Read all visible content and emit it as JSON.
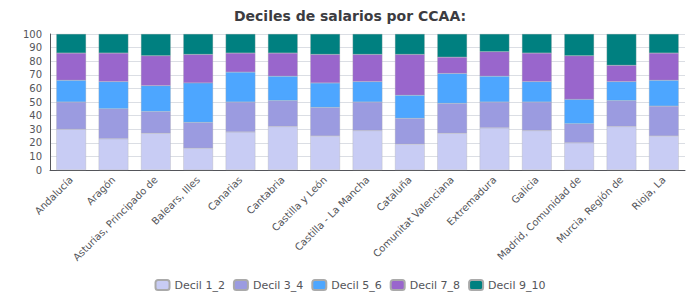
{
  "chart_data": {
    "type": "bar",
    "title": "Deciles de salarios por CCAA:",
    "categories": [
      "Andalucía",
      "Aragón",
      "Asturias, Principado de",
      "Balears, Illes",
      "Canarias",
      "Cantabria",
      "Castilla y León",
      "Castilla - La Mancha",
      "Cataluña",
      "Comunitat Valenciana",
      "Extremadura",
      "Galicia",
      "Madrid, Comunidad de",
      "Murcia, Región de",
      "Rioja, La"
    ],
    "series": [
      {
        "name": "Decil 1_2",
        "color": "#c8ccf4",
        "values": [
          30,
          23,
          27,
          16,
          28,
          32,
          25,
          29,
          19,
          27,
          31,
          29,
          20,
          32,
          25
        ]
      },
      {
        "name": "Decil 3_4",
        "color": "#9b9be0",
        "values": [
          20,
          22,
          16,
          19,
          22,
          19,
          21,
          21,
          19,
          22,
          19,
          21,
          14,
          19,
          22
        ]
      },
      {
        "name": "Decil 5_6",
        "color": "#4da6ff",
        "values": [
          16,
          20,
          19,
          29,
          22,
          18,
          18,
          15,
          17,
          22,
          19,
          15,
          18,
          14,
          19
        ]
      },
      {
        "name": "Decil 7_8",
        "color": "#9966cc",
        "values": [
          20,
          21,
          22,
          21,
          14,
          17,
          21,
          20,
          30,
          12,
          18,
          21,
          32,
          12,
          20
        ]
      },
      {
        "name": "Decil 9_10",
        "color": "#008080",
        "values": [
          14,
          14,
          16,
          15,
          14,
          14,
          15,
          15,
          15,
          17,
          13,
          14,
          16,
          23,
          14
        ]
      }
    ],
    "stacked": true,
    "ylim": [
      0,
      100
    ],
    "yticks": [
      0,
      10,
      20,
      30,
      40,
      50,
      60,
      70,
      80,
      90,
      100
    ],
    "grid": true,
    "legend": "bottom"
  }
}
